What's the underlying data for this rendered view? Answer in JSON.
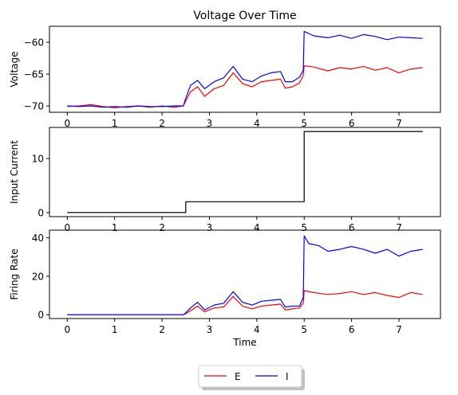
{
  "chart_data": [
    {
      "type": "line",
      "title": "Voltage Over Time",
      "xlabel": "",
      "ylabel": "Voltage",
      "xlim": [
        -0.375,
        7.875
      ],
      "ylim": [
        -71.0,
        -57.5
      ],
      "xticks": [
        0,
        1,
        2,
        3,
        4,
        5,
        6,
        7
      ],
      "yticks": [
        -70,
        -65,
        -60
      ],
      "grid": false,
      "series": [
        {
          "name": "E",
          "color": "#ff0000",
          "x": [
            0,
            0.25,
            0.5,
            0.75,
            1.0,
            1.25,
            1.5,
            1.75,
            2.0,
            2.25,
            2.45,
            2.5,
            2.6,
            2.75,
            2.9,
            3.1,
            3.3,
            3.5,
            3.7,
            3.9,
            4.1,
            4.3,
            4.5,
            4.6,
            4.75,
            4.9,
            4.98,
            5.0,
            5.2,
            5.5,
            5.75,
            6.0,
            6.25,
            6.5,
            6.75,
            7.0,
            7.25,
            7.5
          ],
          "y": [
            -70.1,
            -70.0,
            -69.8,
            -70.1,
            -70.3,
            -70.1,
            -70.0,
            -70.2,
            -70.0,
            -70.2,
            -70.0,
            -69.2,
            -67.8,
            -67.0,
            -68.5,
            -67.3,
            -66.8,
            -64.8,
            -66.5,
            -67.0,
            -66.2,
            -66.0,
            -65.8,
            -67.2,
            -67.0,
            -66.4,
            -65.2,
            -63.7,
            -63.9,
            -64.5,
            -64.0,
            -64.2,
            -63.8,
            -64.4,
            -64.0,
            -64.8,
            -64.2,
            -64.0
          ]
        },
        {
          "name": "I",
          "color": "#0000ff",
          "x": [
            0,
            0.25,
            0.5,
            0.75,
            1.0,
            1.25,
            1.5,
            1.75,
            2.0,
            2.25,
            2.45,
            2.5,
            2.6,
            2.75,
            2.9,
            3.1,
            3.3,
            3.5,
            3.7,
            3.9,
            4.1,
            4.3,
            4.5,
            4.6,
            4.75,
            4.9,
            4.98,
            5.0,
            5.2,
            5.5,
            5.75,
            6.0,
            6.25,
            6.5,
            6.75,
            7.0,
            7.25,
            7.5
          ],
          "y": [
            -70.0,
            -70.1,
            -70.0,
            -70.2,
            -70.1,
            -70.2,
            -70.0,
            -70.1,
            -70.1,
            -70.0,
            -70.0,
            -68.8,
            -66.8,
            -66.0,
            -67.3,
            -66.2,
            -65.6,
            -63.8,
            -65.8,
            -66.2,
            -65.3,
            -64.8,
            -64.6,
            -66.2,
            -66.2,
            -65.5,
            -64.4,
            -58.3,
            -59.0,
            -59.3,
            -58.9,
            -59.4,
            -58.8,
            -59.1,
            -59.6,
            -59.2,
            -59.3,
            -59.4
          ]
        }
      ]
    },
    {
      "type": "line",
      "title": "",
      "xlabel": "",
      "ylabel": "Input Current",
      "xlim": [
        -0.375,
        7.875
      ],
      "ylim": [
        -0.75,
        15.75
      ],
      "xticks": [
        0,
        1,
        2,
        3,
        4,
        5,
        6,
        7
      ],
      "yticks": [
        0,
        10
      ],
      "grid": false,
      "series": [
        {
          "color": "#000000",
          "x": [
            0,
            2.5,
            2.5,
            5.0,
            5.0,
            7.5
          ],
          "y": [
            0,
            0,
            2,
            2,
            15,
            15
          ]
        }
      ]
    },
    {
      "type": "line",
      "title": "",
      "xlabel": "Time",
      "ylabel": "Firing Rate",
      "xlim": [
        -0.375,
        7.875
      ],
      "ylim": [
        -2.0,
        44.0
      ],
      "xticks": [
        0,
        1,
        2,
        3,
        4,
        5,
        6,
        7
      ],
      "yticks": [
        0,
        20,
        40
      ],
      "grid": false,
      "series": [
        {
          "name": "E",
          "color": "#ff0000",
          "x": [
            0,
            0.5,
            1.0,
            1.5,
            2.0,
            2.45,
            2.5,
            2.6,
            2.75,
            2.9,
            3.1,
            3.3,
            3.5,
            3.7,
            3.9,
            4.1,
            4.3,
            4.5,
            4.6,
            4.75,
            4.9,
            4.98,
            5.0,
            5.2,
            5.5,
            5.75,
            6.0,
            6.25,
            6.5,
            6.75,
            7.0,
            7.25,
            7.5
          ],
          "y": [
            0,
            0,
            0,
            0,
            0,
            0,
            0.5,
            2.0,
            4.5,
            1.5,
            3.5,
            4.0,
            9.5,
            4.5,
            3.0,
            4.5,
            5.0,
            5.5,
            2.5,
            3.0,
            3.5,
            6.0,
            12.5,
            11.5,
            10.5,
            11.0,
            12.0,
            10.5,
            11.5,
            10.0,
            9.0,
            11.5,
            10.5
          ]
        },
        {
          "name": "I",
          "color": "#0000ff",
          "x": [
            0,
            0.5,
            1.0,
            1.5,
            2.0,
            2.45,
            2.5,
            2.6,
            2.75,
            2.9,
            3.1,
            3.3,
            3.5,
            3.7,
            3.9,
            4.1,
            4.3,
            4.5,
            4.6,
            4.75,
            4.9,
            4.98,
            5.0,
            5.1,
            5.3,
            5.5,
            5.75,
            6.0,
            6.25,
            6.5,
            6.75,
            7.0,
            7.25,
            7.5
          ],
          "y": [
            0,
            0,
            0,
            0,
            0,
            0,
            1.0,
            3.5,
            6.5,
            2.5,
            5.0,
            6.0,
            12.0,
            6.5,
            5.0,
            7.0,
            7.5,
            8.0,
            4.0,
            4.5,
            4.5,
            9.0,
            41.0,
            37.0,
            36.0,
            33.0,
            34.0,
            35.5,
            34.0,
            32.0,
            34.0,
            30.5,
            33.0,
            34.0
          ]
        }
      ]
    }
  ],
  "legend": {
    "position": "lower-center",
    "entries": [
      {
        "label": "E",
        "color": "#ff0000"
      },
      {
        "label": "I",
        "color": "#0000ff"
      }
    ]
  }
}
